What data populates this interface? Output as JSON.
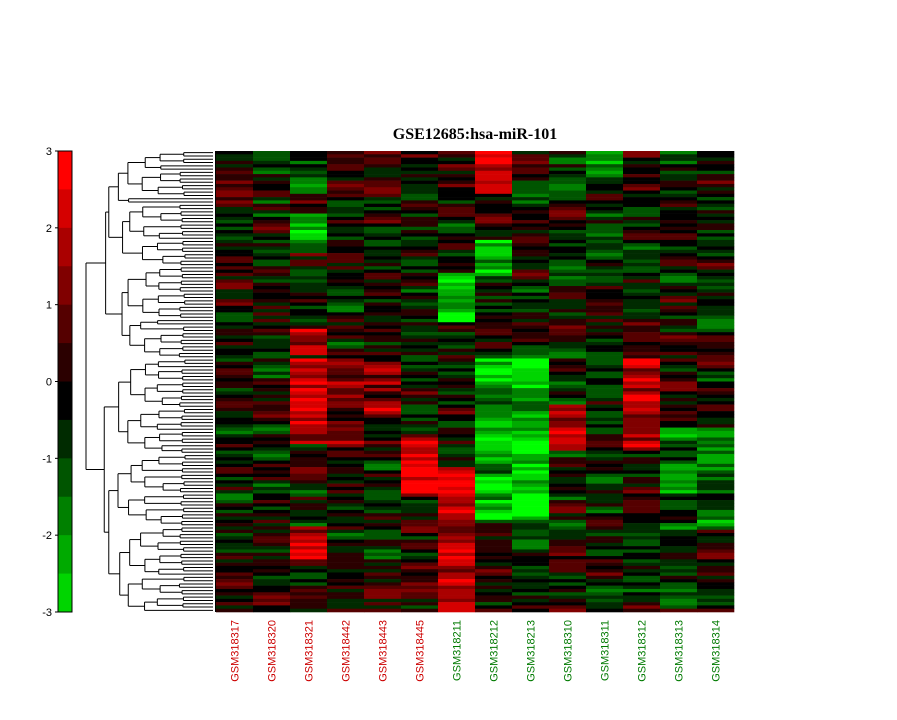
{
  "chart_data": {
    "type": "heatmap",
    "title": "GSE12685:hsa-miR-101",
    "columns": [
      {
        "label": "GSM318317",
        "group": "red"
      },
      {
        "label": "GSM318320",
        "group": "red"
      },
      {
        "label": "GSM318321",
        "group": "red"
      },
      {
        "label": "GSM318442",
        "group": "red"
      },
      {
        "label": "GSM318443",
        "group": "red"
      },
      {
        "label": "GSM318445",
        "group": "red"
      },
      {
        "label": "GSM318211",
        "group": "green"
      },
      {
        "label": "GSM318212",
        "group": "green"
      },
      {
        "label": "GSM318213",
        "group": "green"
      },
      {
        "label": "GSM318310",
        "group": "green"
      },
      {
        "label": "GSM318311",
        "group": "green"
      },
      {
        "label": "GSM318312",
        "group": "green"
      },
      {
        "label": "GSM318313",
        "group": "green"
      },
      {
        "label": "GSM318314",
        "group": "green"
      }
    ],
    "n_rows": 140,
    "colorbar": {
      "ticks": [
        "3",
        "2",
        "1",
        "0",
        "-1",
        "-2",
        "-3"
      ],
      "range": [
        -3,
        3
      ],
      "low_color": "#00ff00",
      "mid_color": "#000000",
      "high_color": "#ff0000"
    },
    "column_blocks": [
      {
        "columns": [
          0,
          1,
          2,
          3,
          4,
          5,
          6,
          7,
          8,
          9,
          10,
          11,
          12,
          13
        ],
        "row_fraction": [
          0,
          0.09
        ],
        "bias": [
          0.2,
          -0.2,
          -0.6,
          0.4,
          0.3,
          0.2,
          0.4,
          2.5,
          0.2,
          -0.2,
          -1.2,
          0.6,
          -0.3,
          0.0
        ]
      },
      {
        "columns": [
          2
        ],
        "row_fraction": [
          0.13,
          0.22
        ],
        "bias": [
          -2.4
        ]
      },
      {
        "columns": [
          7
        ],
        "row_fraction": [
          0.19,
          0.27
        ],
        "bias": [
          -2.5
        ]
      },
      {
        "columns": [
          6
        ],
        "row_fraction": [
          0.26,
          0.37
        ],
        "bias": [
          -2.6
        ]
      },
      {
        "columns": [
          2
        ],
        "row_fraction": [
          0.38,
          0.44
        ],
        "bias": [
          2.6
        ]
      },
      {
        "columns": [
          2,
          3,
          4
        ],
        "row_fraction": [
          0.45,
          0.63
        ],
        "bias": [
          2.0,
          1.6,
          1.2
        ]
      },
      {
        "columns": [
          5
        ],
        "row_fraction": [
          0.62,
          0.74
        ],
        "bias": [
          2.6
        ]
      },
      {
        "columns": [
          6
        ],
        "row_fraction": [
          0.68,
          1.0
        ],
        "bias": [
          2.6
        ]
      },
      {
        "columns": [
          7,
          8
        ],
        "row_fraction": [
          0.45,
          0.8
        ],
        "bias": [
          -2.2,
          -2.0
        ]
      },
      {
        "columns": [
          11
        ],
        "row_fraction": [
          0.45,
          0.65
        ],
        "bias": [
          1.8
        ]
      },
      {
        "columns": [
          9
        ],
        "row_fraction": [
          0.55,
          0.65
        ],
        "bias": [
          1.8
        ]
      },
      {
        "columns": [
          2
        ],
        "row_fraction": [
          0.81,
          0.88
        ],
        "bias": [
          2.4
        ]
      },
      {
        "columns": [
          12,
          13
        ],
        "row_fraction": [
          0.6,
          0.82
        ],
        "bias": [
          -1.0,
          -1.2
        ]
      }
    ]
  }
}
